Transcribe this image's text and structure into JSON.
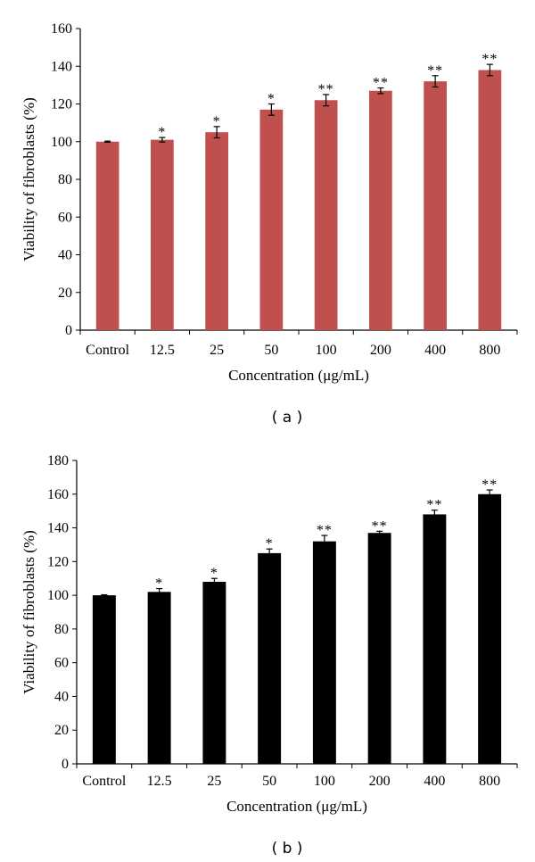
{
  "colors": {
    "panel_a_bar": "#c0504d",
    "panel_b_bar": "#000000",
    "axis": "#000000"
  },
  "chart_data": [
    {
      "type": "bar",
      "panel_label": "( a )",
      "ylabel": "Viability of fibroblasts (%)",
      "xlabel": "Concentration (μg/mL)",
      "categories": [
        "Control",
        "12.5",
        "25",
        "50",
        "100",
        "200",
        "400",
        "800"
      ],
      "values": [
        100,
        101,
        105,
        117,
        122,
        127,
        132,
        138
      ],
      "errors": [
        0.3,
        1.2,
        3,
        3,
        3,
        1.5,
        3,
        3
      ],
      "significance": [
        "",
        "*",
        "*",
        "*",
        "**",
        "**",
        "**",
        "**"
      ],
      "ylim": [
        0,
        160
      ],
      "yticks": [
        0,
        20,
        40,
        60,
        80,
        100,
        120,
        140,
        160
      ],
      "grid": false
    },
    {
      "type": "bar",
      "panel_label": "( b )",
      "ylabel": "Viability of fibroblasts (%)",
      "xlabel": "Concentration (μg/mL)",
      "categories": [
        "Control",
        "12.5",
        "25",
        "50",
        "100",
        "200",
        "400",
        "800"
      ],
      "values": [
        100,
        102,
        108,
        125,
        132,
        137,
        148,
        160
      ],
      "errors": [
        0.3,
        2,
        2,
        2.5,
        3.5,
        1,
        2.5,
        2.5
      ],
      "significance": [
        "",
        "*",
        "*",
        "*",
        "**",
        "**",
        "**",
        "**"
      ],
      "ylim": [
        0,
        180
      ],
      "yticks": [
        0,
        20,
        40,
        60,
        80,
        100,
        120,
        140,
        160,
        180
      ],
      "grid": false
    }
  ]
}
